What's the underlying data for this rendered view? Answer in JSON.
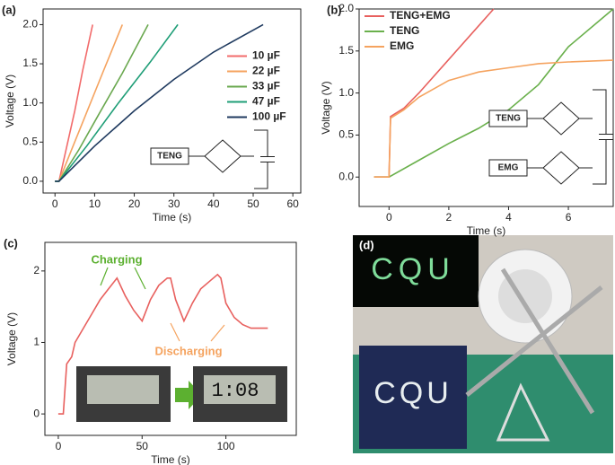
{
  "chart_data": [
    {
      "type": "line",
      "panel": "(a)",
      "xlabel": "Time (s)",
      "ylabel": "Voltage (V)",
      "xlim": [
        -3,
        62
      ],
      "ylim": [
        -0.15,
        2.2
      ],
      "xticks": [
        0,
        10,
        20,
        30,
        40,
        50,
        60
      ],
      "yticks": [
        {
          "value": 0,
          "label": "0.0"
        },
        0.5,
        {
          "value": 1,
          "label": "1.0"
        },
        1.5,
        {
          "value": 2,
          "label": "2.0"
        }
      ],
      "legend": "center right",
      "inset_labels": [
        "TENG"
      ],
      "series": [
        {
          "name": "10 µF",
          "color": "#f26b6b",
          "x": [
            0,
            1,
            3,
            5,
            7,
            9.5
          ],
          "values": [
            0,
            0,
            0.45,
            0.9,
            1.42,
            2.0
          ]
        },
        {
          "name": "22 µF",
          "color": "#f5a35f",
          "x": [
            0,
            1,
            4,
            8,
            12,
            17
          ],
          "values": [
            0,
            0,
            0.38,
            0.88,
            1.38,
            2.0
          ]
        },
        {
          "name": "33 µF",
          "color": "#6aa84f",
          "x": [
            0,
            1,
            6,
            11,
            17,
            23.5
          ],
          "values": [
            0,
            0,
            0.4,
            0.85,
            1.38,
            2.0
          ]
        },
        {
          "name": "47 µF",
          "color": "#1f9e77",
          "x": [
            0,
            1,
            8,
            16,
            24,
            31
          ],
          "values": [
            0,
            0,
            0.45,
            1.0,
            1.52,
            2.0
          ]
        },
        {
          "name": "100 µF",
          "color": "#1f3a5f",
          "x": [
            0,
            1,
            10,
            20,
            30,
            40,
            52.5
          ],
          "values": [
            0,
            0,
            0.45,
            0.9,
            1.3,
            1.65,
            2.0
          ]
        }
      ]
    },
    {
      "type": "line",
      "panel": "(b)",
      "xlabel": "Time (s)",
      "ylabel": "Voltage (V)",
      "xlim": [
        -1,
        7.5
      ],
      "ylim": [
        -0.35,
        2.0
      ],
      "xticks": [
        0,
        2,
        4,
        6
      ],
      "yticks": [
        {
          "value": 0,
          "label": "0.0"
        },
        0.5,
        {
          "value": 1,
          "label": "1.0"
        },
        1.5,
        {
          "value": 2,
          "label": "2.0"
        }
      ],
      "legend": "upper left",
      "inset_labels": [
        "TENG",
        "EMG"
      ],
      "series": [
        {
          "name": "TENG+EMG",
          "color": "#e8605e",
          "x": [
            -0.5,
            0,
            0.05,
            0.5,
            1,
            2,
            3,
            3.5
          ],
          "values": [
            0,
            0,
            0.72,
            0.82,
            1.0,
            1.4,
            1.8,
            2.0
          ]
        },
        {
          "name": "TENG",
          "color": "#6ab04c",
          "x": [
            -0.5,
            0,
            1,
            2,
            3,
            4,
            5,
            6,
            7,
            7.5
          ],
          "values": [
            0,
            0,
            0.2,
            0.4,
            0.58,
            0.8,
            1.1,
            1.55,
            1.85,
            2.0
          ]
        },
        {
          "name": "EMG",
          "color": "#f5a35f",
          "x": [
            -0.5,
            0,
            0.05,
            0.5,
            1,
            2,
            3,
            4,
            5,
            6,
            7.5
          ],
          "values": [
            0,
            0,
            0.7,
            0.8,
            0.95,
            1.15,
            1.25,
            1.3,
            1.35,
            1.37,
            1.39
          ]
        }
      ]
    },
    {
      "type": "line",
      "panel": "(c)",
      "xlabel": "Time (s)",
      "ylabel": "Voltage (V)",
      "xlim": [
        -8,
        142
      ],
      "ylim": [
        -0.3,
        2.4
      ],
      "xticks": [
        0,
        50,
        100
      ],
      "yticks": [
        0,
        1,
        2
      ],
      "annotations": [
        "Charging",
        "Discharging"
      ],
      "inset_text": "1:08",
      "series": [
        {
          "color": "#e8605e",
          "x": [
            0,
            3,
            5,
            8,
            10,
            15,
            20,
            25,
            30,
            35,
            40,
            45,
            50,
            55,
            60,
            65,
            67,
            70,
            75,
            80,
            85,
            90,
            95,
            97,
            100,
            105,
            110,
            115,
            120,
            125
          ],
          "values": [
            0,
            0,
            0.7,
            0.8,
            1.0,
            1.2,
            1.4,
            1.6,
            1.75,
            1.9,
            1.65,
            1.45,
            1.3,
            1.6,
            1.8,
            1.9,
            1.9,
            1.6,
            1.3,
            1.55,
            1.75,
            1.85,
            1.95,
            1.9,
            1.55,
            1.35,
            1.25,
            1.2,
            1.2,
            1.2
          ]
        }
      ]
    }
  ],
  "photo": {
    "panel": "(d)",
    "sign_text": "CQU"
  }
}
